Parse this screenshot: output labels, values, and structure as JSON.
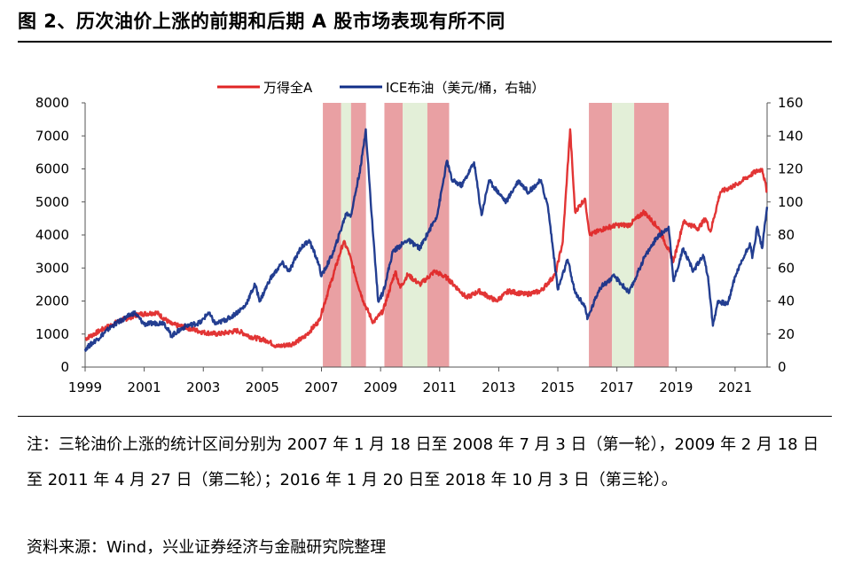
{
  "title": "图 2、历次油价上涨的前期和后期 A 股市场表现有所不同",
  "note": "注：三轮油价上涨的统计区间分别为 2007 年 1 月 18 日至 2008 年 7 月 3 日（第一轮），2009 年 2 月 18 日至 2011 年 4 月 27 日（第二轮）；2016 年 1 月 20 日至 2018 年 10 月 3 日（第三轮）。",
  "source": "资料来源：Wind，兴业证券经济与金融研究院整理",
  "colors": {
    "wind_a": "#e02424",
    "brent": "#102e88",
    "band_red": "#e9a0a3",
    "band_green": "#e3efd8"
  },
  "chart_data": {
    "type": "line",
    "x_range": [
      "1999-01",
      "2022-02"
    ],
    "x_ticks": [
      "1999",
      "2001",
      "2003",
      "2005",
      "2007",
      "2009",
      "2011",
      "2013",
      "2015",
      "2017",
      "2019",
      "2021"
    ],
    "y_left": {
      "ylim": [
        0,
        8000
      ],
      "ticks": [
        "0",
        "1000",
        "2000",
        "3000",
        "4000",
        "5000",
        "6000",
        "7000",
        "8000"
      ]
    },
    "y_right": {
      "ylim": [
        0,
        160
      ],
      "ticks": [
        "0",
        "20",
        "40",
        "60",
        "80",
        "100",
        "120",
        "140",
        "160"
      ]
    },
    "legend": {
      "position": "top-center"
    },
    "series": [
      {
        "name": "万得全A",
        "axis": "left",
        "color": "#e02424",
        "points": [
          [
            "1999-01",
            850
          ],
          [
            "1999-07",
            1100
          ],
          [
            "2000-03",
            1400
          ],
          [
            "2000-11",
            1600
          ],
          [
            "2001-06",
            1650
          ],
          [
            "2001-12",
            1300
          ],
          [
            "2002-06",
            1200
          ],
          [
            "2003-01",
            1050
          ],
          [
            "2003-07",
            1000
          ],
          [
            "2004-03",
            1100
          ],
          [
            "2004-09",
            900
          ],
          [
            "2005-03",
            800
          ],
          [
            "2005-07",
            620
          ],
          [
            "2006-01",
            700
          ],
          [
            "2006-06",
            900
          ],
          [
            "2006-12",
            1400
          ],
          [
            "2007-05",
            2600
          ],
          [
            "2007-10",
            3800
          ],
          [
            "2007-12",
            3500
          ],
          [
            "2008-03",
            2700
          ],
          [
            "2008-06",
            2000
          ],
          [
            "2008-10",
            1350
          ],
          [
            "2009-02",
            1700
          ],
          [
            "2009-07",
            2900
          ],
          [
            "2009-09",
            2400
          ],
          [
            "2009-12",
            2800
          ],
          [
            "2010-05",
            2500
          ],
          [
            "2010-11",
            2900
          ],
          [
            "2011-04",
            2700
          ],
          [
            "2011-12",
            2100
          ],
          [
            "2012-05",
            2300
          ],
          [
            "2012-12",
            2000
          ],
          [
            "2013-05",
            2300
          ],
          [
            "2013-12",
            2200
          ],
          [
            "2014-06",
            2300
          ],
          [
            "2014-12",
            2800
          ],
          [
            "2015-03",
            3800
          ],
          [
            "2015-06",
            7200
          ],
          [
            "2015-08",
            4700
          ],
          [
            "2015-12",
            5100
          ],
          [
            "2016-02",
            4000
          ],
          [
            "2016-08",
            4200
          ],
          [
            "2017-01",
            4300
          ],
          [
            "2017-06",
            4300
          ],
          [
            "2017-12",
            4700
          ],
          [
            "2018-06",
            4200
          ],
          [
            "2018-12",
            3200
          ],
          [
            "2019-04",
            4400
          ],
          [
            "2019-10",
            4200
          ],
          [
            "2020-01",
            4500
          ],
          [
            "2020-03",
            4100
          ],
          [
            "2020-07",
            5300
          ],
          [
            "2021-01",
            5500
          ],
          [
            "2021-09",
            5900
          ],
          [
            "2021-12",
            6000
          ],
          [
            "2022-02",
            5300
          ]
        ]
      },
      {
        "name": "ICE布油（美元/桶，右轴）",
        "axis": "right",
        "color": "#102e88",
        "points": [
          [
            "1999-01",
            11
          ],
          [
            "1999-06",
            17
          ],
          [
            "1999-12",
            25
          ],
          [
            "2000-09",
            33
          ],
          [
            "2001-01",
            26
          ],
          [
            "2001-09",
            27
          ],
          [
            "2001-12",
            19
          ],
          [
            "2002-06",
            25
          ],
          [
            "2002-12",
            27
          ],
          [
            "2003-03",
            33
          ],
          [
            "2003-06",
            26
          ],
          [
            "2003-12",
            30
          ],
          [
            "2004-06",
            37
          ],
          [
            "2004-10",
            50
          ],
          [
            "2004-12",
            40
          ],
          [
            "2005-04",
            53
          ],
          [
            "2005-09",
            63
          ],
          [
            "2005-12",
            58
          ],
          [
            "2006-04",
            71
          ],
          [
            "2006-08",
            77
          ],
          [
            "2006-12",
            62
          ],
          [
            "2007-01",
            55
          ],
          [
            "2007-06",
            70
          ],
          [
            "2007-11",
            93
          ],
          [
            "2008-01",
            92
          ],
          [
            "2008-05",
            122
          ],
          [
            "2008-07",
            144
          ],
          [
            "2008-09",
            100
          ],
          [
            "2008-12",
            40
          ],
          [
            "2009-02",
            45
          ],
          [
            "2009-06",
            70
          ],
          [
            "2009-12",
            77
          ],
          [
            "2010-05",
            72
          ],
          [
            "2010-12",
            92
          ],
          [
            "2011-04",
            125
          ],
          [
            "2011-06",
            113
          ],
          [
            "2011-10",
            110
          ],
          [
            "2012-03",
            124
          ],
          [
            "2012-06",
            92
          ],
          [
            "2012-09",
            113
          ],
          [
            "2013-04",
            100
          ],
          [
            "2013-09",
            113
          ],
          [
            "2014-01",
            106
          ],
          [
            "2014-06",
            113
          ],
          [
            "2014-09",
            97
          ],
          [
            "2015-01",
            47
          ],
          [
            "2015-05",
            65
          ],
          [
            "2015-08",
            45
          ],
          [
            "2015-12",
            37
          ],
          [
            "2016-01",
            29
          ],
          [
            "2016-06",
            48
          ],
          [
            "2016-12",
            55
          ],
          [
            "2017-06",
            45
          ],
          [
            "2017-12",
            66
          ],
          [
            "2018-05",
            78
          ],
          [
            "2018-10",
            85
          ],
          [
            "2018-12",
            52
          ],
          [
            "2019-04",
            72
          ],
          [
            "2019-08",
            58
          ],
          [
            "2019-12",
            68
          ],
          [
            "2020-02",
            55
          ],
          [
            "2020-04",
            25
          ],
          [
            "2020-06",
            40
          ],
          [
            "2020-10",
            38
          ],
          [
            "2021-01",
            55
          ],
          [
            "2021-07",
            75
          ],
          [
            "2021-08",
            66
          ],
          [
            "2021-10",
            85
          ],
          [
            "2021-12",
            72
          ],
          [
            "2022-02",
            97
          ]
        ]
      }
    ],
    "bands": [
      {
        "label": "第一轮",
        "phases": [
          {
            "from": "2007-01-18",
            "to": "2007-09-01",
            "color": "red"
          },
          {
            "from": "2007-09-01",
            "to": "2008-01-01",
            "color": "green"
          },
          {
            "from": "2008-01-01",
            "to": "2008-07-03",
            "color": "red"
          }
        ]
      },
      {
        "label": "第二轮",
        "phases": [
          {
            "from": "2009-02-18",
            "to": "2009-10-01",
            "color": "red"
          },
          {
            "from": "2009-10-01",
            "to": "2010-08-01",
            "color": "green"
          },
          {
            "from": "2010-08-01",
            "to": "2011-04-27",
            "color": "red"
          }
        ]
      },
      {
        "label": "第三轮",
        "phases": [
          {
            "from": "2016-01-20",
            "to": "2016-11-01",
            "color": "red"
          },
          {
            "from": "2016-11-01",
            "to": "2017-08-01",
            "color": "green"
          },
          {
            "from": "2017-08-01",
            "to": "2018-10-03",
            "color": "red"
          }
        ]
      }
    ]
  }
}
